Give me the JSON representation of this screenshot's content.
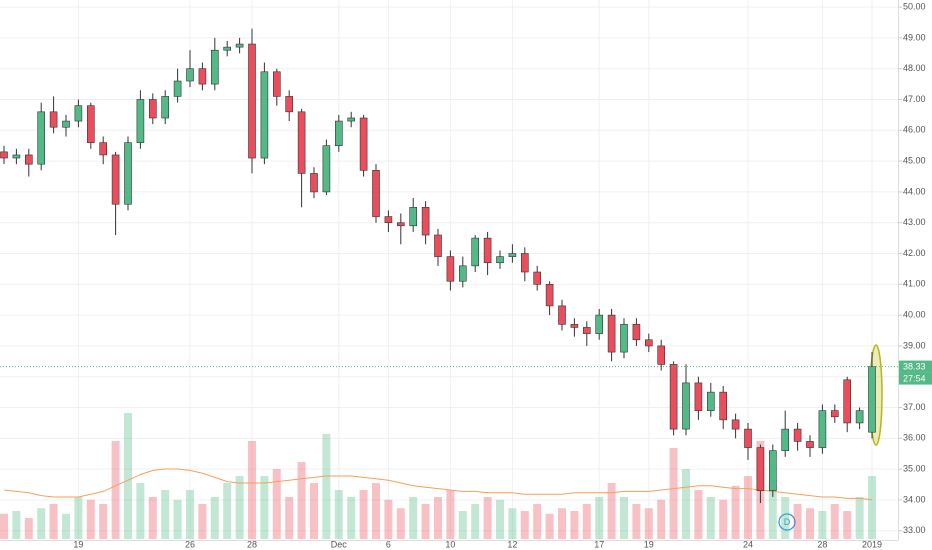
{
  "chart_data": {
    "type": "candlestick",
    "categories": [
      null,
      null,
      null,
      null,
      null,
      null,
      "19",
      null,
      null,
      null,
      null,
      null,
      null,
      null,
      null,
      "26",
      null,
      null,
      null,
      null,
      "28",
      null,
      null,
      null,
      null,
      null,
      null,
      "Dec",
      null,
      null,
      null,
      "6",
      null,
      null,
      null,
      null,
      "10",
      null,
      null,
      null,
      null,
      "12",
      null,
      null,
      null,
      null,
      null,
      null,
      "17",
      null,
      null,
      null,
      "19",
      null,
      null,
      null,
      null,
      null,
      null,
      null,
      "24",
      null,
      null,
      null,
      null,
      null,
      "28",
      null,
      null,
      null,
      "2019"
    ],
    "open": [
      45.3,
      45.1,
      45.2,
      44.9,
      46.6,
      46.1,
      46.3,
      46.8,
      45.6,
      45.2,
      43.6,
      45.6,
      47.0,
      46.4,
      47.1,
      47.6,
      48.0,
      47.5,
      48.6,
      48.7,
      48.8,
      45.1,
      47.9,
      47.1,
      46.6,
      44.6,
      44.0,
      45.5,
      46.3,
      46.4,
      44.7,
      43.2,
      43.0,
      42.9,
      43.5,
      42.6,
      41.9,
      41.1,
      41.6,
      42.5,
      41.7,
      41.9,
      42.0,
      41.4,
      41.0,
      40.3,
      39.7,
      39.6,
      39.4,
      40.0,
      38.8,
      39.7,
      39.2,
      39.0,
      38.4,
      36.3,
      37.8,
      36.9,
      37.5,
      36.6,
      36.3,
      35.7,
      34.3,
      35.6,
      36.3,
      35.9,
      35.7,
      36.9,
      37.9,
      36.5,
      36.2
    ],
    "high": [
      45.5,
      45.4,
      45.4,
      46.9,
      47.1,
      46.5,
      47.0,
      46.9,
      45.8,
      45.3,
      45.8,
      47.3,
      47.2,
      47.3,
      48.0,
      48.6,
      48.2,
      49.0,
      48.9,
      49.0,
      49.3,
      48.2,
      48.0,
      47.3,
      46.7,
      44.8,
      45.7,
      46.5,
      46.6,
      46.5,
      44.9,
      43.4,
      43.3,
      43.8,
      43.7,
      42.8,
      42.1,
      41.9,
      42.6,
      42.7,
      42.1,
      42.3,
      42.2,
      41.6,
      41.1,
      40.5,
      39.9,
      39.8,
      40.2,
      40.2,
      39.9,
      39.9,
      39.4,
      39.2,
      38.5,
      38.4,
      38.0,
      37.8,
      37.7,
      36.8,
      36.5,
      35.8,
      35.8,
      36.9,
      36.5,
      36.1,
      37.1,
      37.1,
      38.0,
      37.0,
      38.8
    ],
    "low": [
      44.9,
      44.9,
      44.5,
      44.7,
      45.9,
      45.8,
      46.1,
      45.4,
      44.9,
      42.6,
      43.4,
      45.4,
      46.2,
      46.2,
      46.9,
      47.4,
      47.3,
      47.3,
      48.4,
      48.5,
      44.6,
      44.9,
      46.8,
      46.3,
      43.5,
      43.8,
      43.9,
      45.3,
      46.1,
      44.5,
      43.0,
      42.7,
      42.3,
      42.7,
      42.3,
      41.6,
      40.8,
      40.9,
      41.4,
      41.3,
      41.5,
      41.7,
      41.1,
      40.8,
      40.0,
      39.5,
      39.3,
      39.0,
      39.2,
      38.5,
      38.6,
      39.0,
      38.8,
      38.2,
      36.1,
      36.1,
      36.6,
      36.7,
      36.3,
      36.0,
      35.3,
      33.9,
      34.1,
      35.4,
      35.6,
      35.4,
      35.5,
      36.5,
      36.2,
      36.3,
      36.0
    ],
    "close": [
      45.1,
      45.2,
      44.9,
      46.6,
      46.1,
      46.3,
      46.8,
      45.6,
      45.2,
      43.6,
      45.6,
      47.0,
      46.4,
      47.1,
      47.6,
      48.0,
      47.5,
      48.6,
      48.7,
      48.8,
      45.1,
      47.9,
      47.1,
      46.6,
      44.6,
      44.0,
      45.5,
      46.3,
      46.4,
      44.7,
      43.2,
      43.0,
      42.9,
      43.5,
      42.6,
      41.9,
      41.1,
      41.6,
      42.5,
      41.7,
      41.9,
      42.0,
      41.4,
      41.0,
      40.3,
      39.7,
      39.6,
      39.4,
      40.0,
      38.8,
      39.7,
      39.2,
      39.0,
      38.4,
      36.3,
      37.8,
      36.9,
      37.5,
      36.6,
      36.3,
      35.7,
      34.3,
      35.6,
      36.3,
      35.9,
      35.7,
      36.9,
      36.7,
      36.5,
      36.9,
      38.33
    ],
    "volume": [
      18,
      20,
      15,
      22,
      25,
      18,
      30,
      28,
      25,
      70,
      90,
      40,
      30,
      35,
      28,
      35,
      25,
      30,
      40,
      45,
      70,
      45,
      50,
      30,
      55,
      40,
      75,
      35,
      30,
      35,
      40,
      28,
      22,
      30,
      25,
      30,
      35,
      20,
      25,
      30,
      28,
      22,
      20,
      25,
      18,
      22,
      20,
      25,
      30,
      40,
      30,
      25,
      22,
      28,
      65,
      50,
      35,
      30,
      28,
      38,
      45,
      70,
      40,
      30,
      25,
      22,
      20,
      25,
      20,
      30,
      45
    ],
    "volume_ma": [
      35,
      34,
      33,
      31,
      30,
      30,
      30,
      32,
      34,
      38,
      42,
      46,
      49,
      50,
      50,
      49,
      47,
      44,
      41,
      40,
      40,
      40,
      41,
      42,
      43,
      44,
      45,
      45,
      45,
      44,
      43,
      42,
      40,
      38,
      37,
      36,
      35,
      34,
      34,
      33,
      33,
      33,
      32,
      32,
      32,
      32,
      33,
      33,
      33,
      33,
      34,
      34,
      34,
      35,
      36,
      37,
      38,
      38,
      37,
      36,
      36,
      35,
      34,
      33,
      32,
      31,
      30,
      30,
      29,
      29,
      28
    ],
    "up_color": "#53b987",
    "down_color": "#eb4d5c",
    "volume_ma_color": "#f5a05a",
    "ylim": [
      32.7,
      50.23
    ],
    "yticks": [
      {
        "value": 33,
        "label": "33.00"
      },
      {
        "value": 34,
        "label": "34.00"
      },
      {
        "value": 35,
        "label": "35.00"
      },
      {
        "value": 36,
        "label": "36.00"
      },
      {
        "value": 37,
        "label": "37.00"
      },
      {
        "value": 38,
        "label": "38.00"
      },
      {
        "value": 39,
        "label": "39.00"
      },
      {
        "value": 40,
        "label": "40.00"
      },
      {
        "value": 41,
        "label": "41.00"
      },
      {
        "value": 42,
        "label": "42.00"
      },
      {
        "value": 43,
        "label": "43.00"
      },
      {
        "value": 44,
        "label": "44.00"
      },
      {
        "value": 45,
        "label": "45.00"
      },
      {
        "value": 46,
        "label": "46.00"
      },
      {
        "value": 47,
        "label": "47.00"
      },
      {
        "value": 48,
        "label": "48.00"
      },
      {
        "value": 49,
        "label": "49.00"
      },
      {
        "value": 50,
        "label": "50.00"
      }
    ],
    "grid": true,
    "countdown": "27:54",
    "interval_badge": "D"
  }
}
